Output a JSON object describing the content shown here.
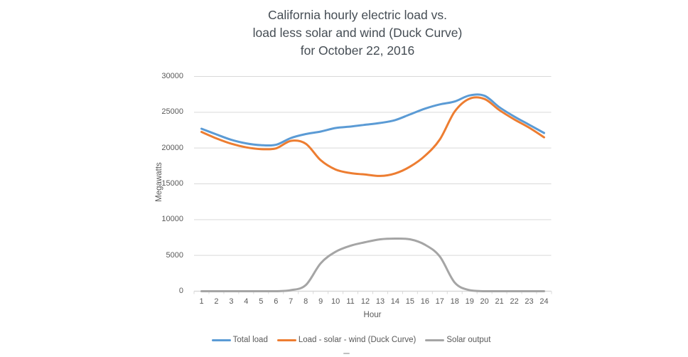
{
  "title": {
    "line1": "California hourly electric load vs.",
    "line2": "load less solar and wind (Duck Curve)",
    "line3": "for October 22, 2016"
  },
  "chart_data": {
    "type": "line",
    "smoothed": true,
    "x": [
      1,
      2,
      3,
      4,
      5,
      6,
      7,
      8,
      9,
      10,
      11,
      12,
      13,
      14,
      15,
      16,
      17,
      18,
      19,
      20,
      21,
      22,
      23,
      24
    ],
    "series": [
      {
        "name": "Total load",
        "color": "#5B9BD5",
        "values": [
          22700,
          21900,
          21150,
          20650,
          20400,
          20450,
          21400,
          21950,
          22300,
          22800,
          23000,
          23250,
          23500,
          23900,
          24700,
          25500,
          26100,
          26500,
          27350,
          27300,
          25700,
          24400,
          23250,
          22100
        ]
      },
      {
        "name": "Load - solar - wind (Duck Curve)",
        "color": "#ED7D31",
        "values": [
          22250,
          21350,
          20600,
          20100,
          19850,
          19950,
          21000,
          20600,
          18300,
          17000,
          16500,
          16300,
          16100,
          16450,
          17400,
          18900,
          21200,
          25100,
          26900,
          26850,
          25300,
          24000,
          22850,
          21500
        ]
      },
      {
        "name": "Solar output",
        "color": "#A5A5A5",
        "values": [
          0,
          0,
          0,
          0,
          0,
          0,
          150,
          850,
          3900,
          5500,
          6350,
          6850,
          7250,
          7350,
          7250,
          6500,
          4850,
          1200,
          150,
          0,
          0,
          0,
          0,
          0
        ]
      }
    ],
    "xlabel": "Hour",
    "ylabel": "Megawatts",
    "ylim": [
      0,
      30000
    ],
    "y_ticks": [
      0,
      5000,
      10000,
      15000,
      20000,
      25000,
      30000
    ],
    "grid": true,
    "legend_position": "bottom"
  },
  "colors": {
    "gridline": "#D9D9D9",
    "axis_line": "#D9D9D9",
    "tick_text": "#595959",
    "title_text": "#454D54",
    "background": "#FFFFFF"
  }
}
